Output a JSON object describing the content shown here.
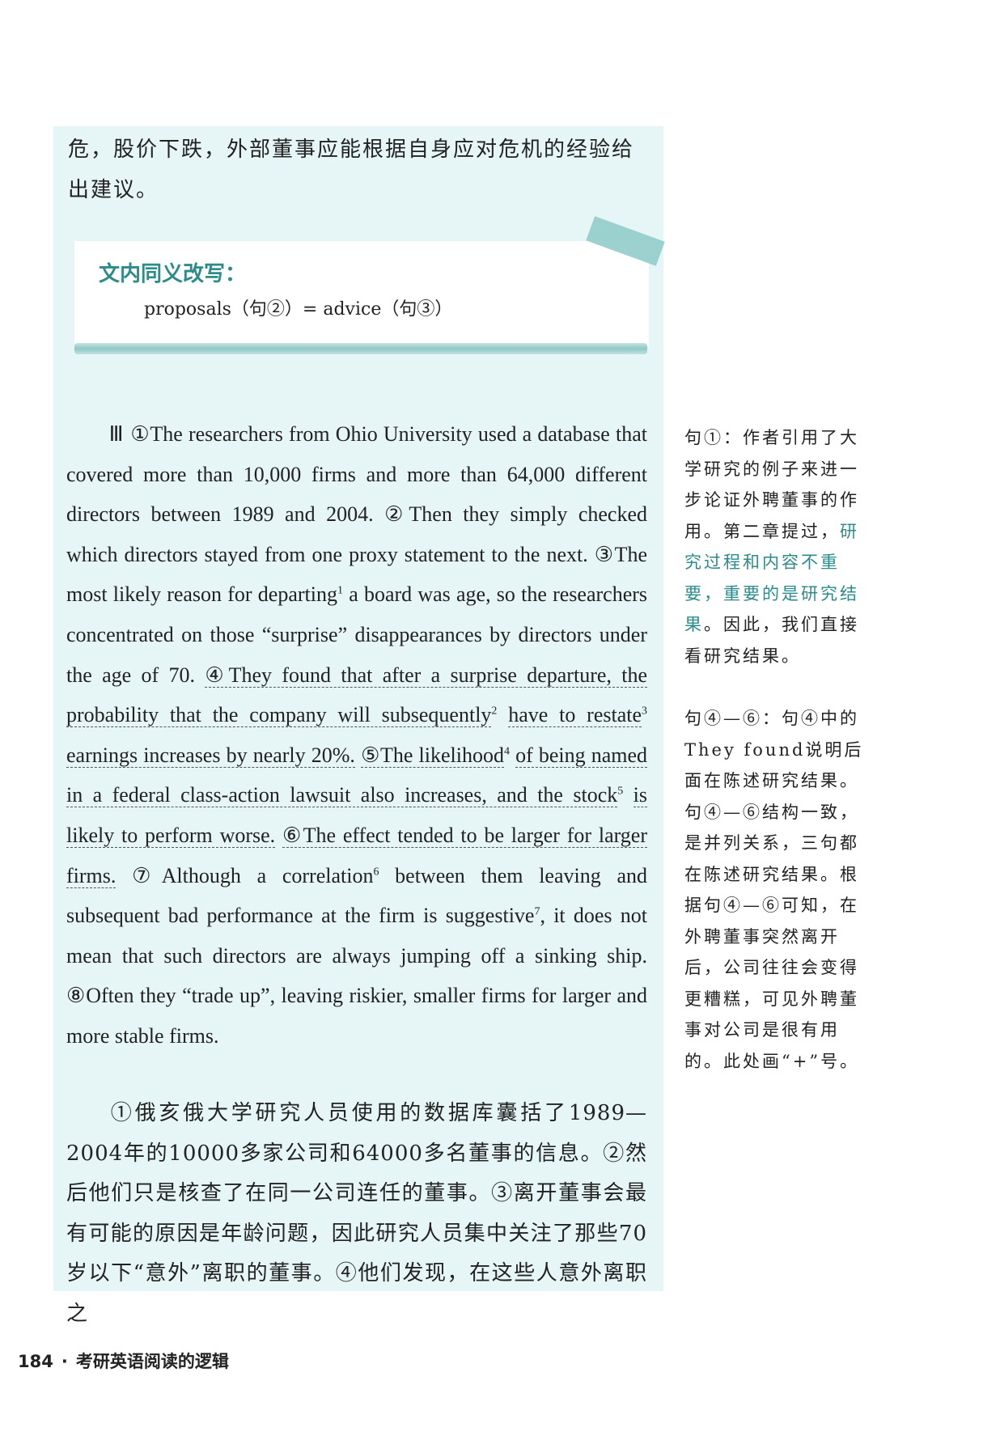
{
  "top_paragraph": "危，股价下跌，外部董事应能根据自身应对危机的经验给出建议。",
  "rewrite": {
    "title": "文内同义改写：",
    "content": "proposals（句②）= advice（句③）"
  },
  "english_paragraph": {
    "roman": "Ⅲ",
    "s1": "①The researchers from Ohio University used a database that covered more than 10,000 firms and more than 64,000 different directors between 1989 and 2004.",
    "s2": "②Then they simply checked which directors stayed from one proxy statement to the next.",
    "s3a": "③The most likely reason for departing",
    "n1": "1",
    "s3b": "a board was age, so the researchers concentrated on those “surprise” disappearances by directors under the age of 70.",
    "s4a": "④They found that after a surprise departure, the probability that the company will subsequently",
    "n2": "2",
    "s4b": "have to restate",
    "n3": "3",
    "s4c": "earnings increases by nearly 20%.",
    "s5a": "⑤The likelihood",
    "n4": "4",
    "s5b": "of being named in a federal class-action lawsuit also increases, and the stock",
    "n5": "5",
    "s5c": "is likely to perform worse.",
    "s6": "⑥The effect tended to be larger for larger firms.",
    "s7a": "⑦Although a correlation",
    "n6": "6",
    "s7b": "between them leaving and subsequent bad performance at the firm is suggestive",
    "n7": "7",
    "s7c": ", it does not mean that such directors are always jumping off a sinking ship.",
    "s8": "⑧Often they “trade up”, leaving riskier, smaller firms for larger and more stable firms."
  },
  "chinese_paragraph": "①俄亥俄大学研究人员使用的数据库囊括了1989—2004年的10000多家公司和64000多名董事的信息。②然后他们只是核查了在同一公司连任的董事。③离开董事会最有可能的原因是年龄问题，因此研究人员集中关注了那些70岁以下“意外”离职的董事。④他们发现，在这些人意外离职之",
  "notes": {
    "note1_a": "句①：作者引用了大学研究的例子来进一步论证外聘董事的作用。第二章提过，",
    "note1_hl": "研究过程和内容不重要，重要的是研究结果",
    "note1_b": "。因此，我们直接看研究结果。",
    "note2": "句④—⑥：句④中的They found说明后面在陈述研究结果。句④—⑥结构一致，是并列关系，三句都在陈述研究结果。根据句④—⑥可知，在外聘董事突然离开后，公司往往会变得更糟糕，可见外聘董事对公司是很有用的。此处画“+”号。"
  },
  "footer": {
    "page_number": "184",
    "separator": "·",
    "book_title": "考研英语阅读的逻辑"
  }
}
